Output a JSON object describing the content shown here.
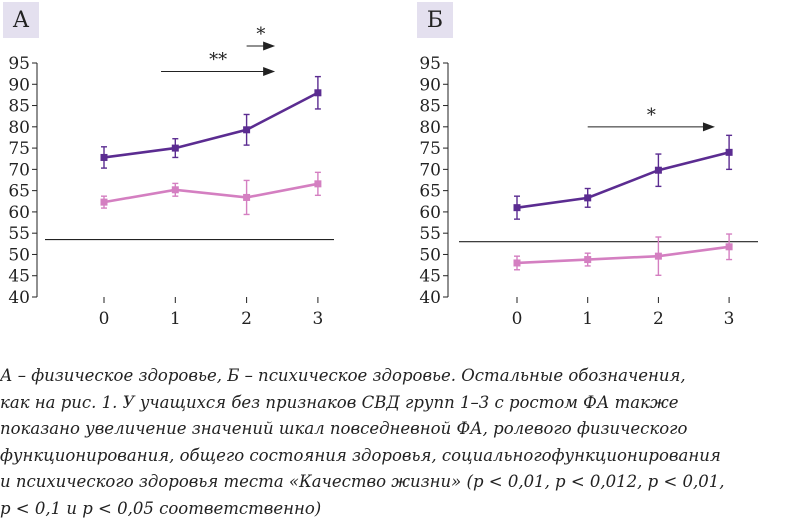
{
  "chart_data": [
    {
      "type": "line",
      "panel_label": "А",
      "categories": [
        "0",
        "1",
        "2",
        "3"
      ],
      "ylim": [
        40,
        95
      ],
      "yticks": [
        40,
        45,
        50,
        55,
        60,
        65,
        70,
        75,
        80,
        85,
        90,
        95
      ],
      "series": [
        {
          "values": [
            72.8,
            75.0,
            79.3,
            88.0
          ],
          "errors": [
            2.5,
            2.2,
            3.6,
            3.8
          ],
          "color": "#5b2c91"
        },
        {
          "values": [
            62.3,
            65.2,
            63.4,
            66.6
          ],
          "errors": [
            1.4,
            1.5,
            4.0,
            2.7
          ],
          "color": "#d47fc1"
        }
      ],
      "reference_line": 53.5,
      "annotations": [
        {
          "label": "**",
          "from": 0.8,
          "to": 2.4,
          "y": 93
        },
        {
          "label": "*",
          "from": 2.0,
          "to": 2.4,
          "y": 99
        }
      ]
    },
    {
      "type": "line",
      "panel_label": "Б",
      "categories": [
        "0",
        "1",
        "2",
        "3"
      ],
      "ylim": [
        40,
        95
      ],
      "yticks": [
        40,
        45,
        50,
        55,
        60,
        65,
        70,
        75,
        80,
        85,
        90,
        95
      ],
      "series": [
        {
          "values": [
            61.0,
            63.3,
            69.8,
            74.0
          ],
          "errors": [
            2.7,
            2.2,
            3.8,
            4.0
          ],
          "color": "#5b2c91"
        },
        {
          "values": [
            48.0,
            48.8,
            49.6,
            51.8
          ],
          "errors": [
            1.6,
            1.5,
            4.5,
            3.0
          ],
          "color": "#d47fc1"
        }
      ],
      "reference_line": 53.0,
      "annotations": [
        {
          "label": "*",
          "from": 1.0,
          "to": 2.8,
          "y": 80
        }
      ]
    }
  ],
  "caption": [
    "А – физическое здоровье, Б – психическое здоровье. Остальные обозначения,",
    "как на рис. 1. У учащихся без признаков СВД групп 1–3 с ростом ФА также",
    "показано увеличение значений шкал повседневной ФА, ролевого физического",
    "функционирования, общего состояния здоровья, социальногофункционирования",
    "и психического здоровья теста «Качество жизни» (p < 0,01, p < 0,012, p < 0,01,",
    "p < 0,1 и p < 0,05 соответственно)"
  ]
}
